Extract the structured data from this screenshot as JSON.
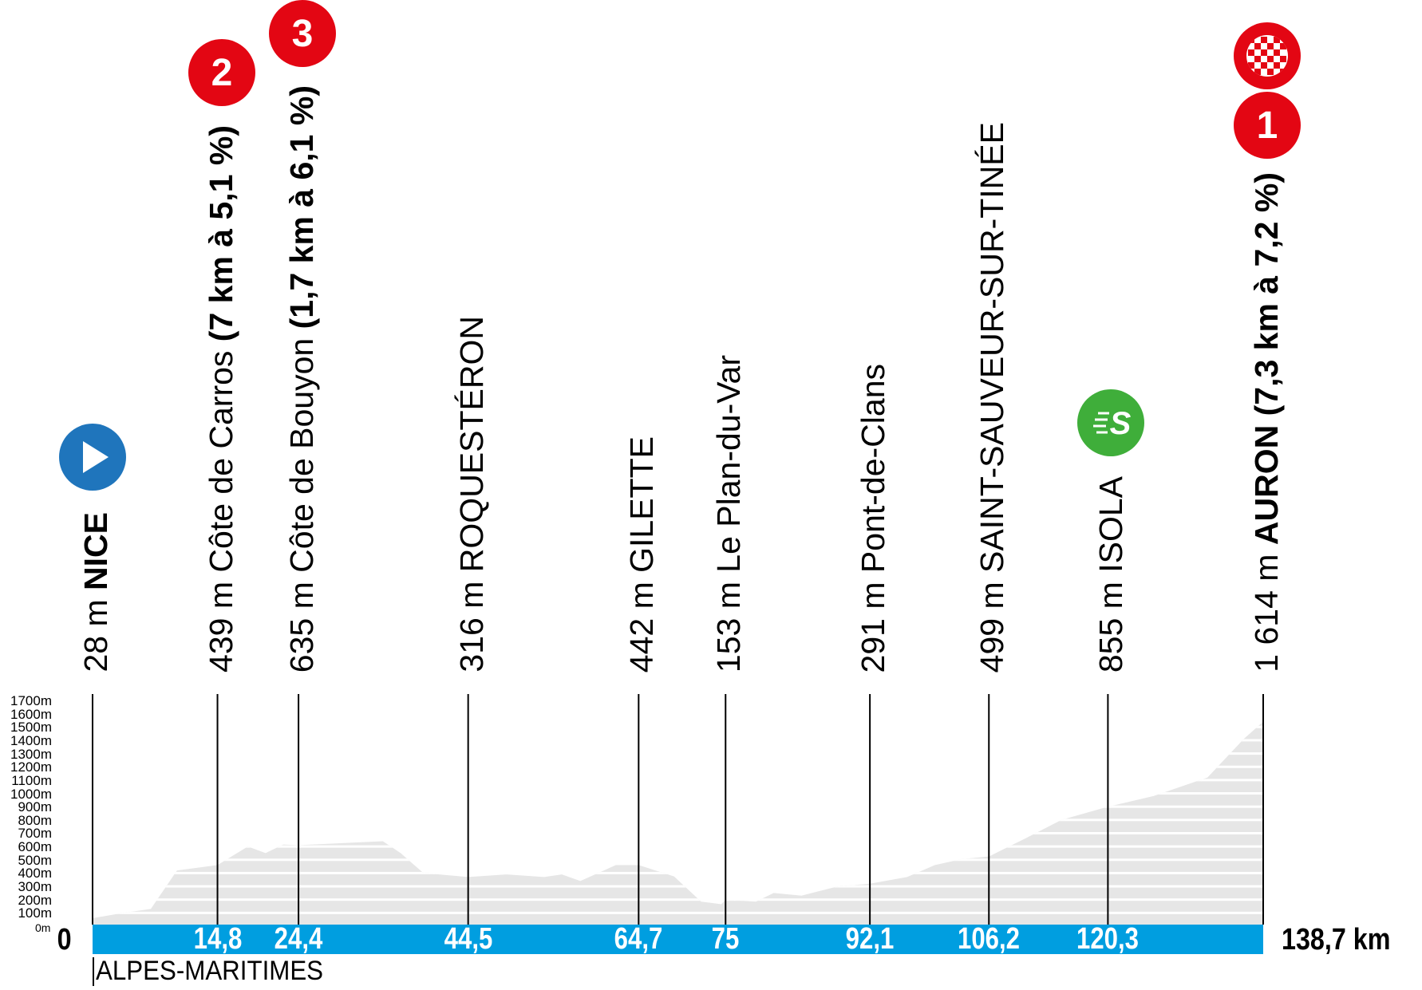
{
  "colors": {
    "profile_fill": "#e6e6e6",
    "distance_bar": "#009ee0",
    "climb_badge": "#e30613",
    "start_badge": "#1f75bc",
    "sprint_badge": "#3fae3a"
  },
  "y_axis_labels": [
    "1700m",
    "1600m",
    "1500m",
    "1400m",
    "1300m",
    "1200m",
    "1100m",
    "1000m",
    "900m",
    "800m",
    "700m",
    "600m",
    "500m",
    "400m",
    "300m",
    "200m",
    "100m",
    "0m"
  ],
  "start_km_label": "0",
  "total_distance_label": "138,7 km",
  "region": "ALPES-MARITIMES",
  "points": [
    {
      "km": 0,
      "elevation": "28 m",
      "place": "NICE",
      "place_bold": true,
      "climb": "",
      "km_label": "",
      "icons": [
        "start-icon"
      ]
    },
    {
      "km": 14.8,
      "elevation": "439 m",
      "place": "Côte de Carros",
      "place_bold": false,
      "climb": "(7 km à 5,1 %)",
      "km_label": "14,8",
      "icons": [
        "climb-category-2-icon"
      ],
      "badge_text": [
        "2"
      ]
    },
    {
      "km": 24.4,
      "elevation": "635 m",
      "place": "Côte de Bouyon",
      "place_bold": false,
      "climb": "(1,7 km à 6,1 %)",
      "km_label": "24,4",
      "icons": [
        "climb-category-3-icon"
      ],
      "badge_text": [
        "3"
      ]
    },
    {
      "km": 44.5,
      "elevation": "316 m",
      "place": "ROQUESTÉRON",
      "place_bold": false,
      "climb": "",
      "km_label": "44,5",
      "icons": []
    },
    {
      "km": 64.7,
      "elevation": "442 m",
      "place": "GILETTE",
      "place_bold": false,
      "climb": "",
      "km_label": "64,7",
      "icons": []
    },
    {
      "km": 75,
      "elevation": "153 m",
      "place": "Le Plan-du-Var",
      "place_bold": false,
      "climb": "",
      "km_label": "75",
      "icons": []
    },
    {
      "km": 92.1,
      "elevation": "291 m",
      "place": "Pont-de-Clans",
      "place_bold": false,
      "climb": "",
      "km_label": "92,1",
      "icons": []
    },
    {
      "km": 106.2,
      "elevation": "499 m",
      "place": "SAINT-SAUVEUR-SUR-TINÉE",
      "place_bold": false,
      "climb": "",
      "km_label": "106,2",
      "icons": []
    },
    {
      "km": 120.3,
      "elevation": "855 m",
      "place": "ISOLA",
      "place_bold": false,
      "climb": "",
      "km_label": "120,3",
      "icons": [
        "sprint-icon"
      ],
      "badge_text": [
        "S"
      ]
    },
    {
      "km": 138.7,
      "elevation": "1 614 m",
      "place": "AURON",
      "place_bold": true,
      "climb": "(7,3 km à 7,2 %)",
      "km_label": "",
      "icons": [
        "finish-flag-icon",
        "climb-category-1-icon"
      ],
      "badge_text": [
        "",
        "1"
      ]
    }
  ],
  "chart_data": {
    "type": "area",
    "xlabel": "",
    "ylabel": "",
    "xlim": [
      0,
      138.7
    ],
    "ylim": [
      0,
      1700
    ],
    "y_ticks": [
      0,
      100,
      200,
      300,
      400,
      500,
      600,
      700,
      800,
      900,
      1000,
      1100,
      1200,
      1300,
      1400,
      1500,
      1600,
      1700
    ],
    "grid": false,
    "x": [
      0,
      3.6,
      6.9,
      10,
      14.8,
      18.4,
      20.5,
      22.6,
      24.4,
      34.4,
      36.5,
      39.2,
      44.5,
      49,
      53.5,
      55.6,
      57.8,
      62,
      64.7,
      68.9,
      72.1,
      74.5,
      75,
      78.6,
      80.7,
      84,
      88.3,
      92.1,
      96.5,
      99.8,
      103,
      106.2,
      110.5,
      114.8,
      120.3,
      125.7,
      132.1,
      136.4,
      138.7
    ],
    "elevation_m": [
      60,
      100,
      130,
      420,
      460,
      600,
      550,
      615,
      610,
      640,
      550,
      400,
      370,
      390,
      370,
      390,
      340,
      460,
      460,
      375,
      185,
      165,
      200,
      185,
      250,
      230,
      300,
      320,
      370,
      460,
      505,
      525,
      660,
      800,
      900,
      980,
      1120,
      1410,
      1540
    ]
  }
}
